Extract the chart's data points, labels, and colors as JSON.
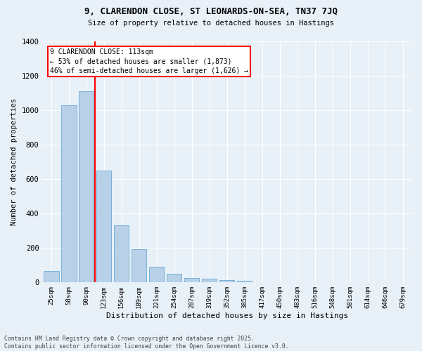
{
  "title1": "9, CLARENDON CLOSE, ST LEONARDS-ON-SEA, TN37 7JQ",
  "title2": "Size of property relative to detached houses in Hastings",
  "xlabel": "Distribution of detached houses by size in Hastings",
  "ylabel": "Number of detached properties",
  "categories": [
    "25sqm",
    "58sqm",
    "90sqm",
    "123sqm",
    "156sqm",
    "189sqm",
    "221sqm",
    "254sqm",
    "287sqm",
    "319sqm",
    "352sqm",
    "385sqm",
    "417sqm",
    "450sqm",
    "483sqm",
    "516sqm",
    "548sqm",
    "581sqm",
    "614sqm",
    "646sqm",
    "679sqm"
  ],
  "values": [
    65,
    1030,
    1110,
    650,
    330,
    195,
    90,
    50,
    25,
    20,
    15,
    10,
    3,
    2,
    2,
    1,
    1,
    1,
    0,
    0,
    0
  ],
  "bar_color": "#b8d0e8",
  "bar_edge_color": "#6aaad4",
  "background_color": "#e8f0f8",
  "grid_color": "#ffffff",
  "vline_x": 2.5,
  "vline_color": "red",
  "annotation_title": "9 CLARENDON CLOSE: 113sqm",
  "annotation_line1": "← 53% of detached houses are smaller (1,873)",
  "annotation_line2": "46% of semi-detached houses are larger (1,626) →",
  "annotation_box_color": "red",
  "ylim": [
    0,
    1400
  ],
  "yticks": [
    0,
    200,
    400,
    600,
    800,
    1000,
    1200,
    1400
  ],
  "footer1": "Contains HM Land Registry data © Crown copyright and database right 2025.",
  "footer2": "Contains public sector information licensed under the Open Government Licence v3.0."
}
